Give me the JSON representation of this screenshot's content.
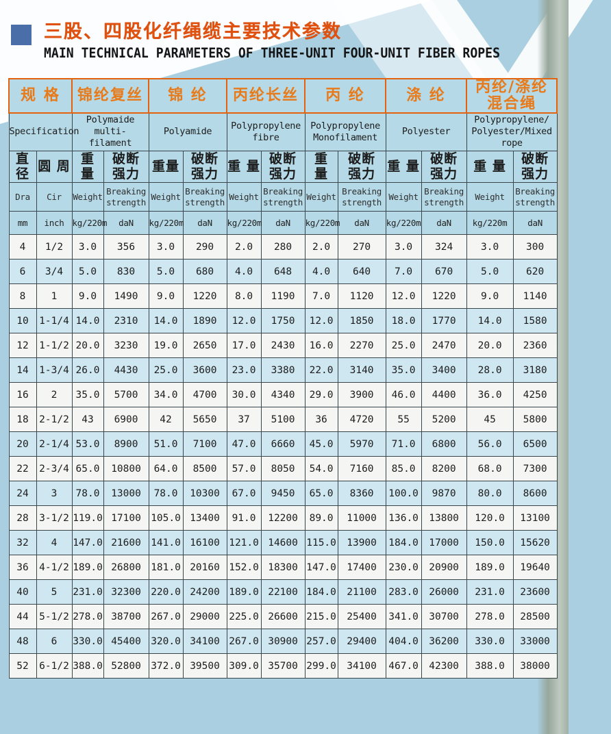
{
  "page": {
    "title_cn": "三股、四股化纤绳缆主要技术参数",
    "title_en": "MAIN TECHNICAL PARAMETERS OF THREE-UNIT FOUR-UNIT FIBER ROPES"
  },
  "colors": {
    "accent_orange": "#e2620e",
    "title_orange": "#e0510f",
    "title_square_blue": "#4a6fa8",
    "page_background_blue": "#a9cfe1",
    "header_cell_blue": "#b5d9e6",
    "shaded_row_blue": "#cfe7f1",
    "plain_row_white": "#f5f6f3",
    "page_edge_gray_green": "#97a79b"
  },
  "table": {
    "spec_header": {
      "cn": "规 格",
      "en": "Specification"
    },
    "groups": [
      {
        "cn": "锦纶复丝",
        "en": "Polymaide multi-\nfilament"
      },
      {
        "cn": "锦 纶",
        "en": "Polyamide"
      },
      {
        "cn": "丙纶长丝",
        "en": "Polypropylene\nfibre"
      },
      {
        "cn": "丙 纶",
        "en": "Polypropylene\nMonofilament"
      },
      {
        "cn": "涤 纶",
        "en": "Polyester"
      },
      {
        "cn": "丙纶/涤纶\n混合绳",
        "en": "Polypropylene/\nPolyester/Mixed\nrope"
      }
    ],
    "sub_rows": {
      "cn": [
        "直径",
        "圆 周",
        "重 量",
        "破断\n强力",
        "重量",
        "破断\n强力",
        "重 量",
        "破断\n强力",
        "重 量",
        "破断\n强力",
        "重 量",
        "破断\n强力",
        "重 量",
        "破断\n强力"
      ],
      "en": [
        "Dra",
        "Cir",
        "Weight",
        "Breaking\nstrength",
        "Weight",
        "Breaking\nstrength",
        "Weight",
        "Breaking\nstrength",
        "Weight",
        "Breaking\nstrength",
        "Weight",
        "Breaking\nstrength",
        "Weight",
        "Breaking\nstrength"
      ],
      "unit": [
        "mm",
        "inch",
        "kg/220m",
        "daN",
        "kg/220m",
        "daN",
        "kg/220m",
        "daN",
        "kg/220m",
        "daN",
        "kg/220m",
        "daN",
        "kg/220m",
        "daN"
      ]
    },
    "rows": [
      {
        "shaded": false,
        "cells": [
          "4",
          "1/2",
          "3.0",
          "356",
          "3.0",
          "290",
          "2.0",
          "280",
          "2.0",
          "270",
          "3.0",
          "324",
          "3.0",
          "300"
        ]
      },
      {
        "shaded": true,
        "cells": [
          "6",
          "3/4",
          "5.0",
          "830",
          "5.0",
          "680",
          "4.0",
          "648",
          "4.0",
          "640",
          "7.0",
          "670",
          "5.0",
          "620"
        ]
      },
      {
        "shaded": false,
        "cells": [
          "8",
          "1",
          "9.0",
          "1490",
          "9.0",
          "1220",
          "8.0",
          "1190",
          "7.0",
          "1120",
          "12.0",
          "1220",
          "9.0",
          "1140"
        ]
      },
      {
        "shaded": true,
        "cells": [
          "10",
          "1-1/4",
          "14.0",
          "2310",
          "14.0",
          "1890",
          "12.0",
          "1750",
          "12.0",
          "1850",
          "18.0",
          "1770",
          "14.0",
          "1580"
        ]
      },
      {
        "shaded": false,
        "cells": [
          "12",
          "1-1/2",
          "20.0",
          "3230",
          "19.0",
          "2650",
          "17.0",
          "2430",
          "16.0",
          "2270",
          "25.0",
          "2470",
          "20.0",
          "2360"
        ]
      },
      {
        "shaded": true,
        "cells": [
          "14",
          "1-3/4",
          "26.0",
          "4430",
          "25.0",
          "3600",
          "23.0",
          "3380",
          "22.0",
          "3140",
          "35.0",
          "3400",
          "28.0",
          "3180"
        ]
      },
      {
        "shaded": false,
        "cells": [
          "16",
          "2",
          "35.0",
          "5700",
          "34.0",
          "4700",
          "30.0",
          "4340",
          "29.0",
          "3900",
          "46.0",
          "4400",
          "36.0",
          "4250"
        ]
      },
      {
        "shaded": false,
        "cells": [
          "18",
          "2-1/2",
          "43",
          "6900",
          "42",
          "5650",
          "37",
          "5100",
          "36",
          "4720",
          "55",
          "5200",
          "45",
          "5800"
        ]
      },
      {
        "shaded": true,
        "cells": [
          "20",
          "2-1/4",
          "53.0",
          "8900",
          "51.0",
          "7100",
          "47.0",
          "6660",
          "45.0",
          "5970",
          "71.0",
          "6800",
          "56.0",
          "6500"
        ]
      },
      {
        "shaded": false,
        "cells": [
          "22",
          "2-3/4",
          "65.0",
          "10800",
          "64.0",
          "8500",
          "57.0",
          "8050",
          "54.0",
          "7160",
          "85.0",
          "8200",
          "68.0",
          "7300"
        ]
      },
      {
        "shaded": true,
        "cells": [
          "24",
          "3",
          "78.0",
          "13000",
          "78.0",
          "10300",
          "67.0",
          "9450",
          "65.0",
          "8360",
          "100.0",
          "9870",
          "80.0",
          "8600"
        ]
      },
      {
        "shaded": false,
        "cells": [
          "28",
          "3-1/2",
          "119.0",
          "17100",
          "105.0",
          "13400",
          "91.0",
          "12200",
          "89.0",
          "11000",
          "136.0",
          "13800",
          "120.0",
          "13100"
        ]
      },
      {
        "shaded": true,
        "cells": [
          "32",
          "4",
          "147.0",
          "21600",
          "141.0",
          "16100",
          "121.0",
          "14600",
          "115.0",
          "13900",
          "184.0",
          "17000",
          "150.0",
          "15620"
        ]
      },
      {
        "shaded": false,
        "cells": [
          "36",
          "4-1/2",
          "189.0",
          "26800",
          "181.0",
          "20160",
          "152.0",
          "18300",
          "147.0",
          "17400",
          "230.0",
          "20900",
          "189.0",
          "19640"
        ]
      },
      {
        "shaded": true,
        "cells": [
          "40",
          "5",
          "231.0",
          "32300",
          "220.0",
          "24200",
          "189.0",
          "22100",
          "184.0",
          "21100",
          "283.0",
          "26000",
          "231.0",
          "23600"
        ]
      },
      {
        "shaded": false,
        "cells": [
          "44",
          "5-1/2",
          "278.0",
          "38700",
          "267.0",
          "29000",
          "225.0",
          "26600",
          "215.0",
          "25400",
          "341.0",
          "30700",
          "278.0",
          "28500"
        ]
      },
      {
        "shaded": true,
        "cells": [
          "48",
          "6",
          "330.0",
          "45400",
          "320.0",
          "34100",
          "267.0",
          "30900",
          "257.0",
          "29400",
          "404.0",
          "36200",
          "330.0",
          "33000"
        ]
      },
      {
        "shaded": false,
        "cells": [
          "52",
          "6-1/2",
          "388.0",
          "52800",
          "372.0",
          "39500",
          "309.0",
          "35700",
          "299.0",
          "34100",
          "467.0",
          "42300",
          "388.0",
          "38000"
        ]
      }
    ]
  }
}
